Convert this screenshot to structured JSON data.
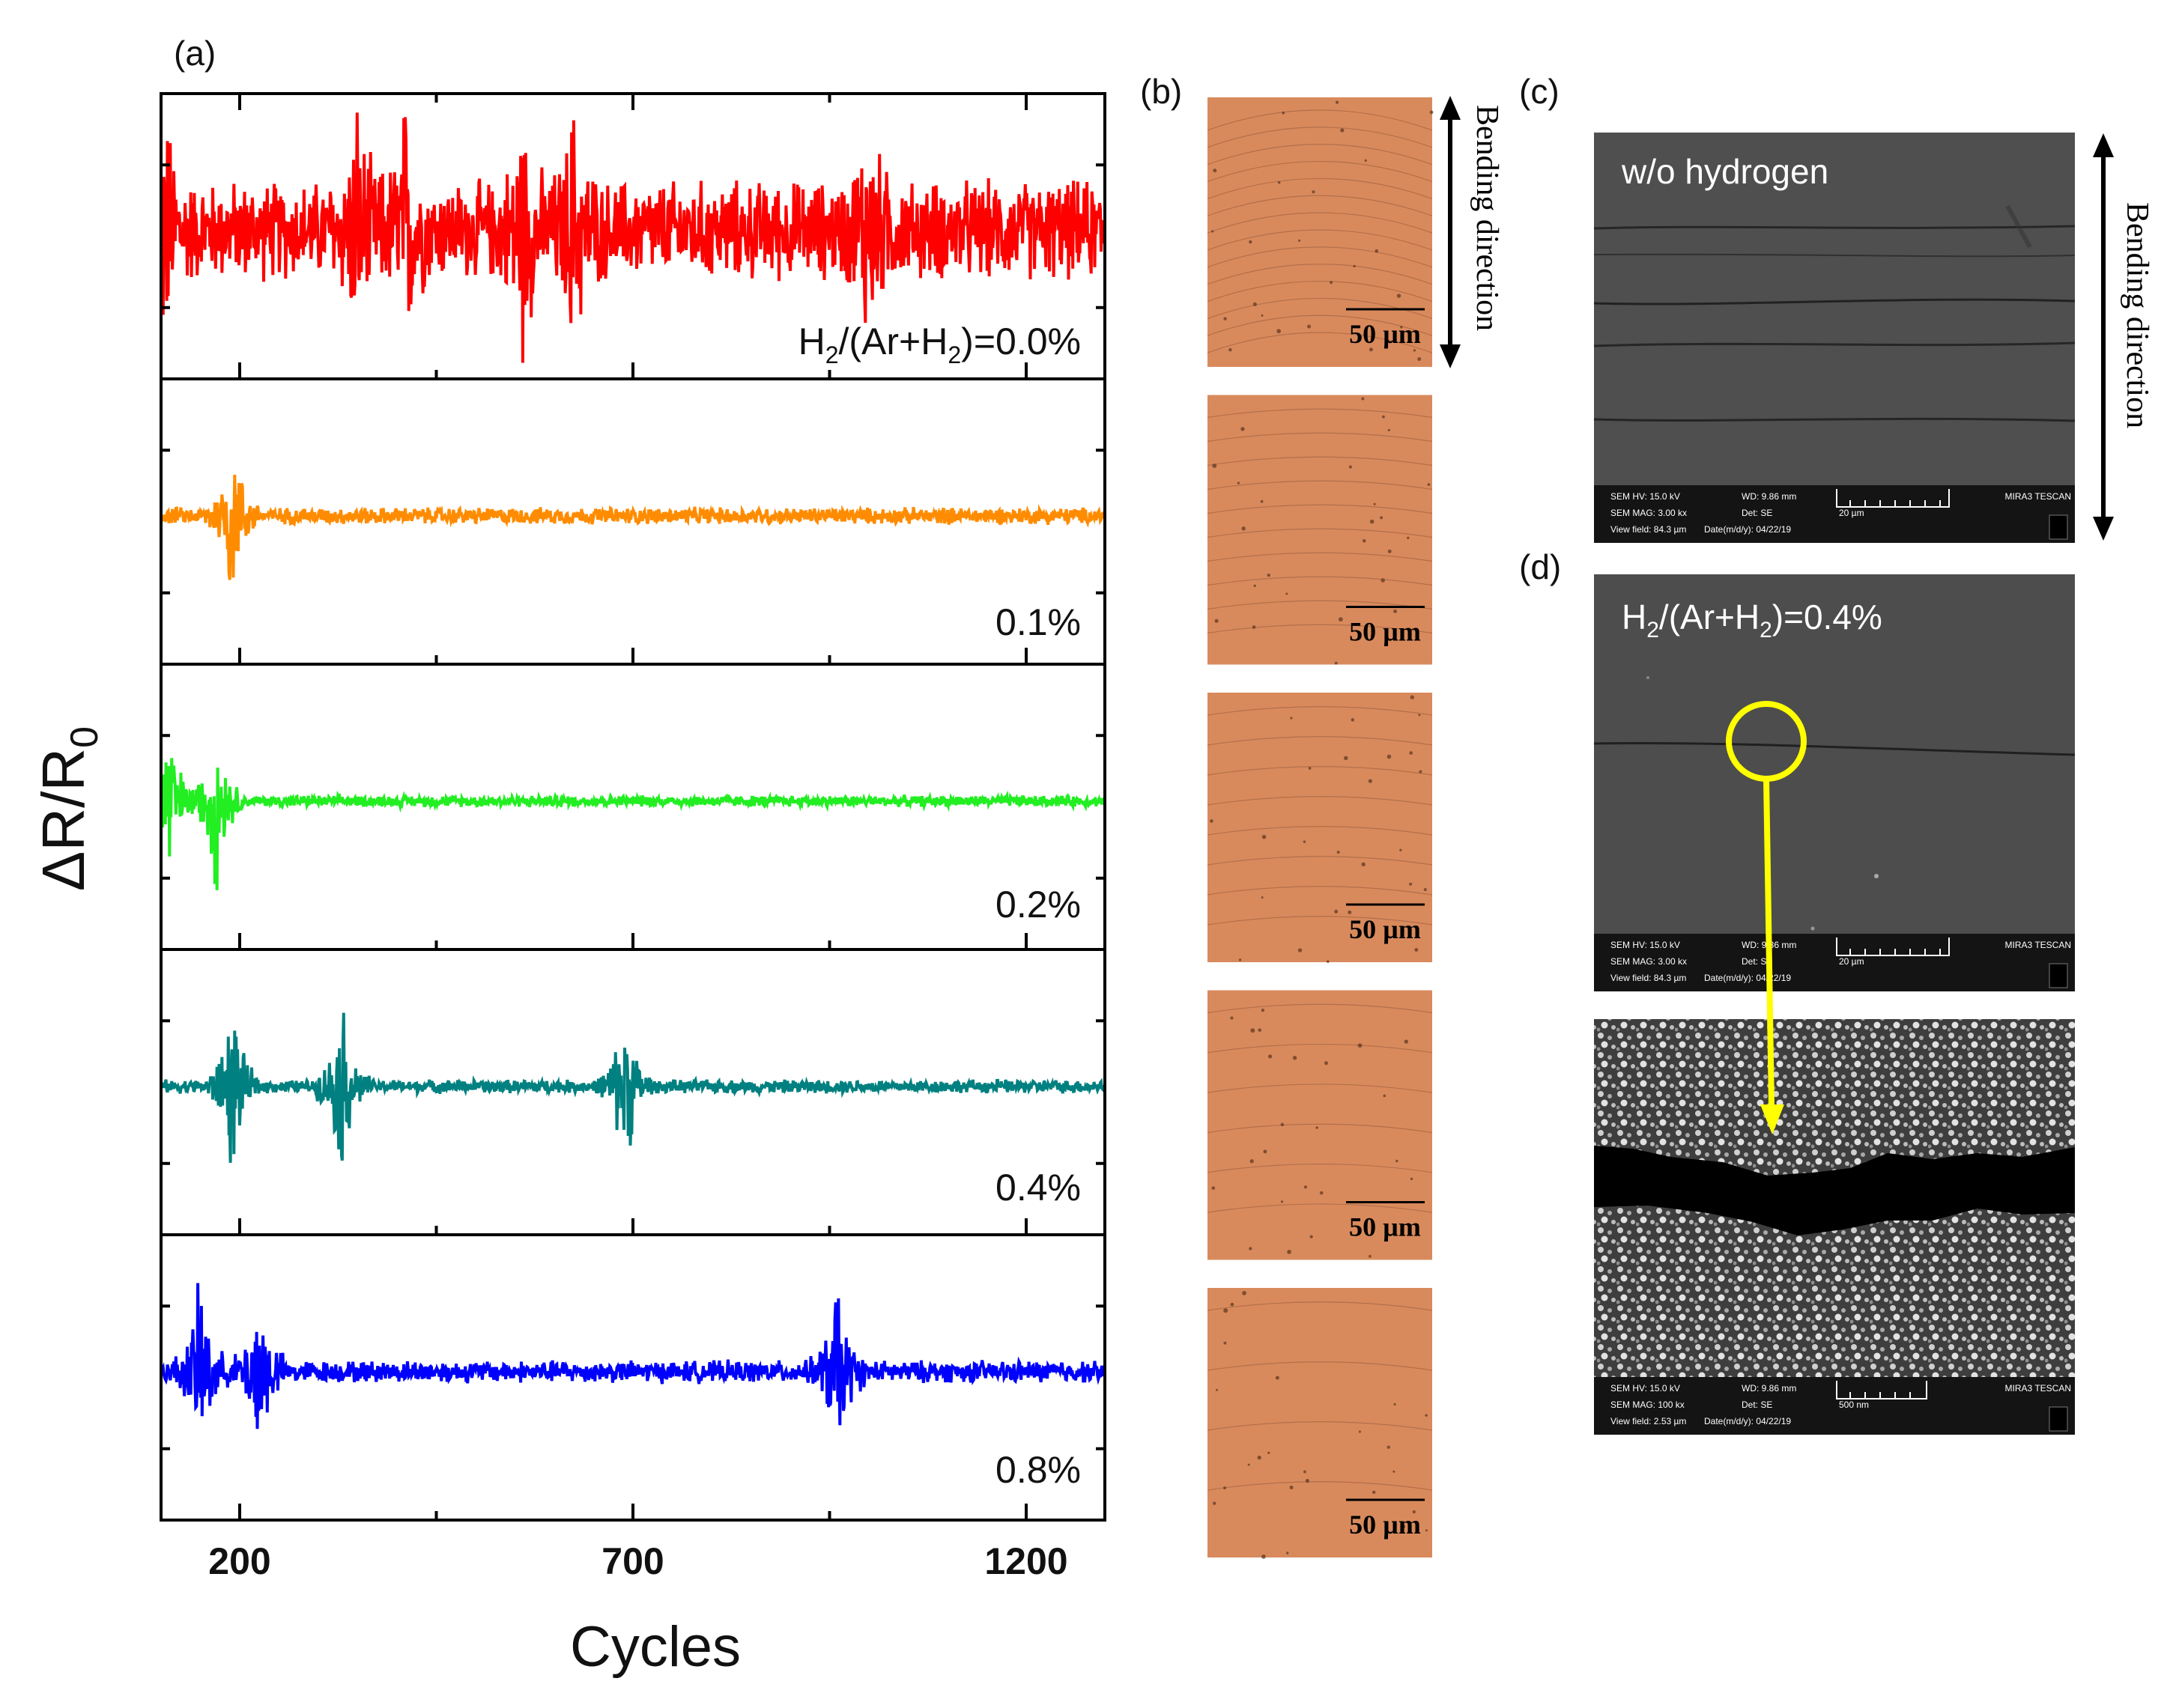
{
  "panel_labels": {
    "a": "(a)",
    "b": "(b)",
    "c": "(c)",
    "d": "(d)"
  },
  "chart_data": {
    "type": "line",
    "xlabel": "Cycles",
    "ylabel_main": "ΔR/R",
    "ylabel_sub": "0",
    "x_ticks": [
      "200",
      "700",
      "1200"
    ],
    "x_tick_values": [
      200,
      700,
      1200
    ],
    "xlim": [
      100,
      1300
    ],
    "series": [
      {
        "name": "H2/(Ar+H2)=0.0%",
        "color": "#ff0000",
        "noise_amplitude": 0.9,
        "spike_centers": [
          105,
          350,
          410,
          560,
          625,
          1000
        ]
      },
      {
        "name": "0.1%",
        "color": "#ff8c00",
        "noise_amplitude": 0.15,
        "spike_centers": [
          190
        ]
      },
      {
        "name": "0.2%",
        "color": "#22ee22",
        "noise_amplitude": 0.1,
        "spike_centers": [
          110,
          170
        ]
      },
      {
        "name": "0.4%",
        "color": "#008080",
        "noise_amplitude": 0.12,
        "spike_centers": [
          190,
          330,
          690
        ]
      },
      {
        "name": "0.8%",
        "color": "#0000ff",
        "noise_amplitude": 0.2,
        "spike_centers": [
          150,
          225,
          960
        ]
      }
    ],
    "series_labels": {
      "s0": {
        "main": "H",
        "sub1": "2",
        "mid": "/(Ar+H",
        "sub2": "2",
        "end": ")=0.0%"
      },
      "s1": "0.1%",
      "s2": "0.2%",
      "s3": "0.4%",
      "s4": "0.8%"
    }
  },
  "micrographs": {
    "scale_bar_label": "50 µm",
    "bending_direction": "Bending direction"
  },
  "sem_c": {
    "title": "w/o hydrogen",
    "info": {
      "hv": "SEM HV: 15.0 kV",
      "wd": "WD: 9.86 mm",
      "brand": "MIRA3 TESCAN",
      "mag": "SEM MAG: 3.00 kx",
      "det": "Det: SE",
      "scale": "20 µm",
      "field": "View field: 84.3 µm",
      "date": "Date(m/d/y): 04/22/19"
    }
  },
  "sem_d": {
    "title": {
      "main": "H",
      "sub1": "2",
      "mid": "/(Ar+H",
      "sub2": "2",
      "end": ")=0.4%"
    },
    "info": {
      "hv": "SEM HV: 15.0 kV",
      "wd": "WD: 9.86 mm",
      "brand": "MIRA3 TESCAN",
      "mag": "SEM MAG: 3.00 kx",
      "det": "Det: SE",
      "scale": "20 µm",
      "field": "View field: 84.3 µm",
      "date": "Date(m/d/y): 04/22/19"
    }
  },
  "sem_zoom": {
    "info": {
      "hv": "SEM HV: 15.0 kV",
      "wd": "WD: 9.86 mm",
      "brand": "MIRA3 TESCAN",
      "mag": "SEM MAG: 100 kx",
      "det": "Det: SE",
      "scale": "500 nm",
      "field": "View field: 2.53 µm",
      "date": "Date(m/d/y): 04/22/19"
    }
  },
  "colors": {
    "copper": "#d98a5c",
    "sem_bg": "#4d4d4d",
    "highlight": "#ffff00"
  }
}
